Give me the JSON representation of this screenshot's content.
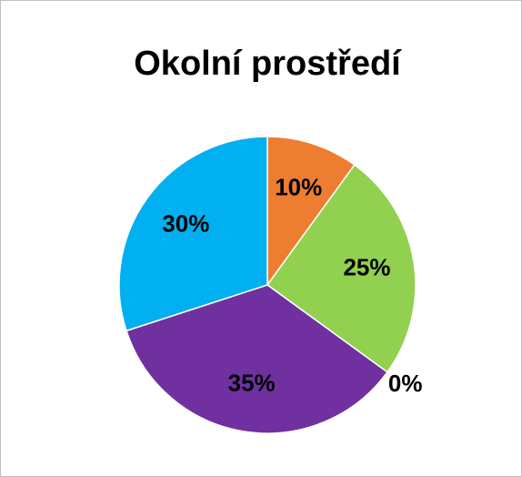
{
  "chart_data": {
    "type": "pie",
    "title": "Okolní prostředí",
    "values": [
      10,
      25,
      0,
      35,
      30
    ],
    "value_labels": [
      "10%",
      "25%",
      "0%",
      "35%",
      "30%"
    ],
    "colors": [
      "#ED7D31",
      "#92D050",
      "#A5A5A5",
      "#7030A0",
      "#00B0F0"
    ]
  }
}
